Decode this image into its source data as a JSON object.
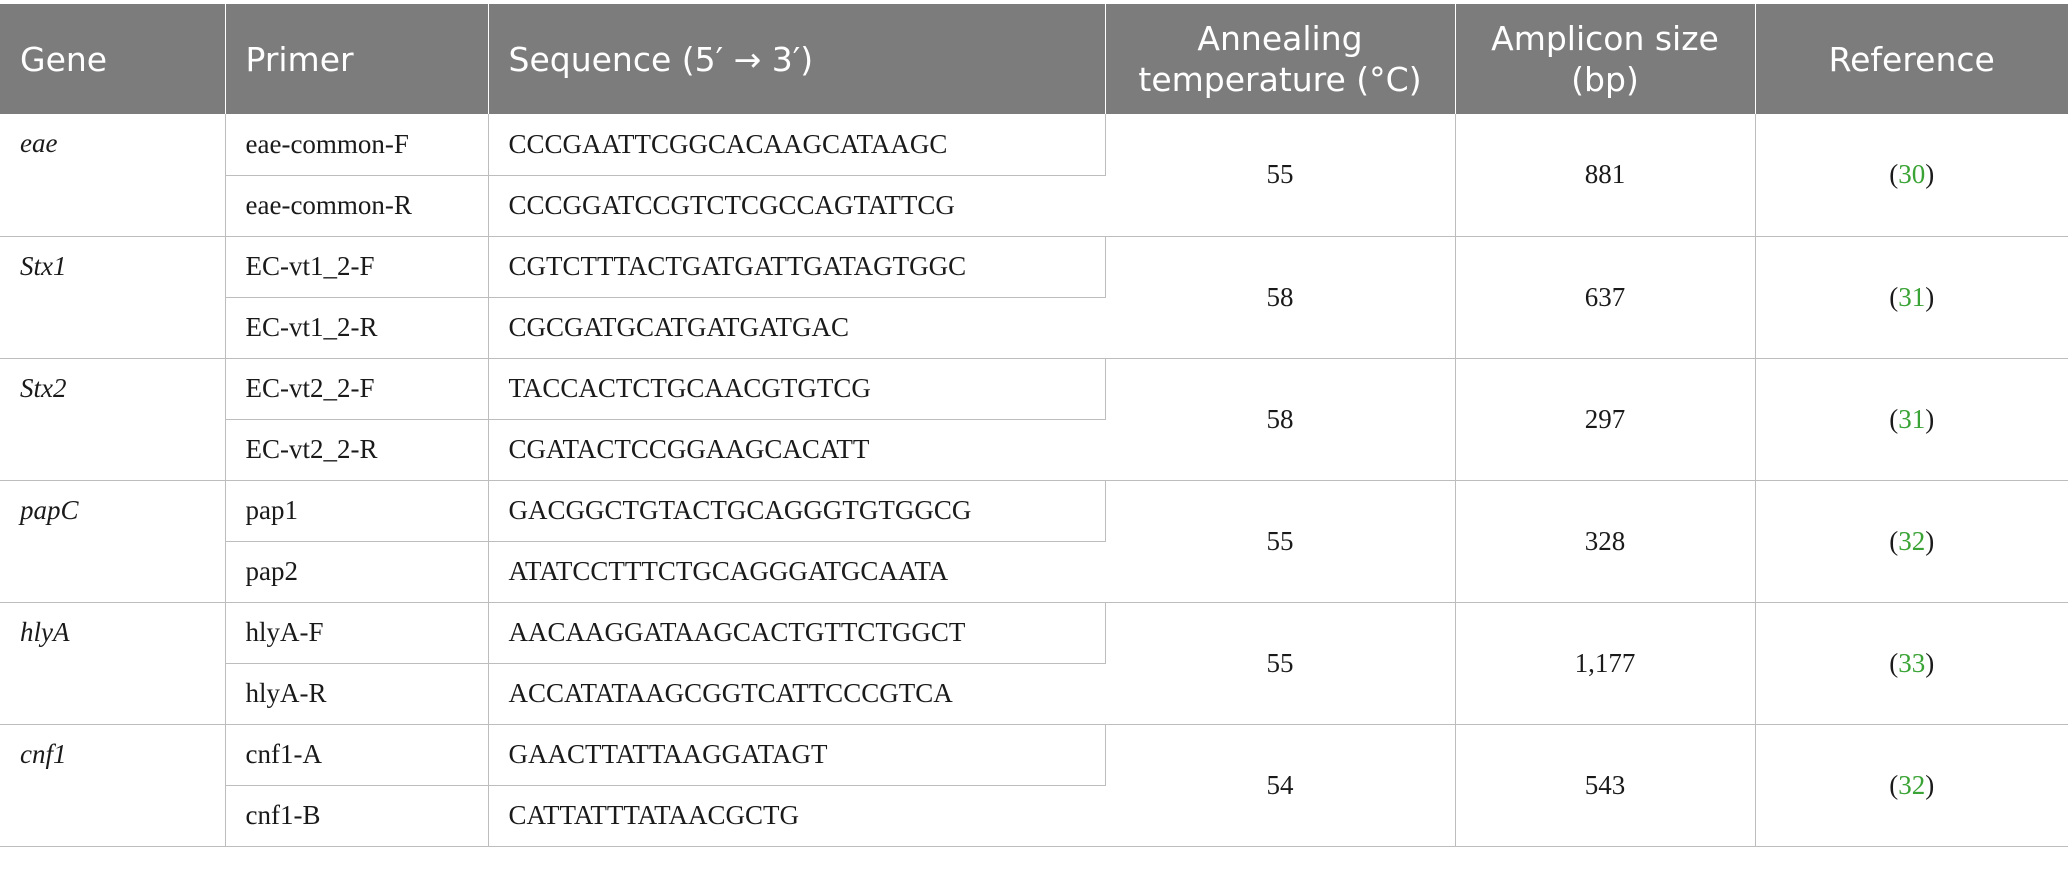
{
  "table": {
    "headers": {
      "gene": "Gene",
      "primer": "Primer",
      "sequence": "Sequence (5′ → 3′)",
      "annealing_line1": "Annealing",
      "annealing_line2": "temperature (°C)",
      "amplicon_line1": "Amplicon size",
      "amplicon_line2": "(bp)",
      "reference": "Reference"
    },
    "groups": [
      {
        "gene": "eae",
        "primers": [
          {
            "name": "eae-common-F",
            "sequence": "CCCGAATTCGGCACAAGCATAAGC"
          },
          {
            "name": "eae-common-R",
            "sequence": "CCCGGATCCGTCTCGCCAGTATTCG"
          }
        ],
        "temperature": "55",
        "amplicon": "881",
        "ref_open": "(",
        "ref_num": "30",
        "ref_close": ")"
      },
      {
        "gene": "Stx1",
        "primers": [
          {
            "name": "EC-vt1_2-F",
            "sequence": "CGTCTTTACTGATGATTGATAGTGGC"
          },
          {
            "name": "EC-vt1_2-R",
            "sequence": "CGCGATGCATGATGATGAC"
          }
        ],
        "temperature": "58",
        "amplicon": "637",
        "ref_open": "(",
        "ref_num": "31",
        "ref_close": ")"
      },
      {
        "gene": "Stx2",
        "primers": [
          {
            "name": "EC-vt2_2-F",
            "sequence": "TACCACTCTGCAACGTGTCG"
          },
          {
            "name": "EC-vt2_2-R",
            "sequence": "CGATACTCCGGAAGCACATT"
          }
        ],
        "temperature": "58",
        "amplicon": "297",
        "ref_open": "(",
        "ref_num": "31",
        "ref_close": ")"
      },
      {
        "gene": "papC",
        "primers": [
          {
            "name": "pap1",
            "sequence": "GACGGCTGTACTGCAGGGTGTGGCG"
          },
          {
            "name": "pap2",
            "sequence": "ATATCCTTTCTGCAGGGATGCAATA"
          }
        ],
        "temperature": "55",
        "amplicon": "328",
        "ref_open": "(",
        "ref_num": "32",
        "ref_close": ")"
      },
      {
        "gene": "hlyA",
        "primers": [
          {
            "name": "hlyA-F",
            "sequence": "AACAAGGATAAGCACTGTTCTGGCT"
          },
          {
            "name": "hlyA-R",
            "sequence": "ACCATATAAGCGGTCATTCCCGTCA"
          }
        ],
        "temperature": "55",
        "amplicon": "1,177",
        "ref_open": "(",
        "ref_num": "33",
        "ref_close": ")"
      },
      {
        "gene": "cnf1",
        "primers": [
          {
            "name": "cnf1-A",
            "sequence": "GAACTTATTAAGGATAGT"
          },
          {
            "name": "cnf1-B",
            "sequence": "CATTATTTATAACGCTG"
          }
        ],
        "temperature": "54",
        "amplicon": "543",
        "ref_open": "(",
        "ref_num": "32",
        "ref_close": ")"
      }
    ],
    "colors": {
      "header_bg": "#7c7c7c",
      "header_text": "#ffffff",
      "reference_link": "#3aa335",
      "grid": "#bdbdbd"
    }
  }
}
